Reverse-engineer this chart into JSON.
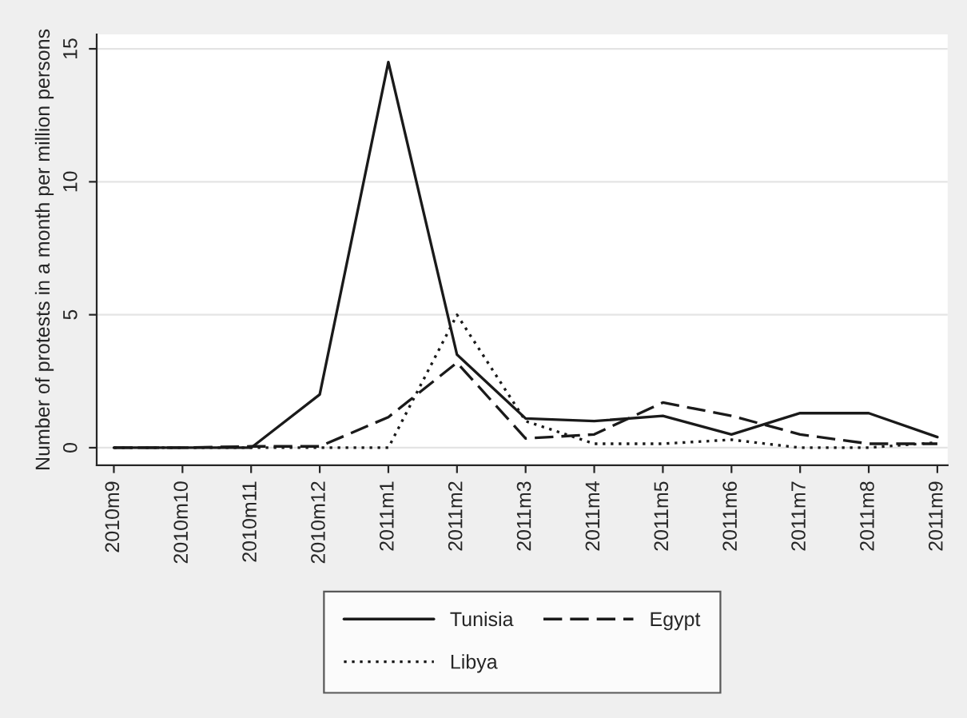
{
  "chart_data": {
    "type": "line",
    "ylabel": "Number of protests in a month per million persons",
    "categories": [
      "2010m9",
      "2010m10",
      "2010m11",
      "2010m12",
      "2011m1",
      "2011m2",
      "2011m3",
      "2011m4",
      "2011m5",
      "2011m6",
      "2011m7",
      "2011m8",
      "2011m9"
    ],
    "series": [
      {
        "name": "Tunisia",
        "color": "#1a1a1a",
        "line_style": "solid",
        "values": [
          0,
          0,
          0,
          2.0,
          14.5,
          3.5,
          1.1,
          1.0,
          1.2,
          0.5,
          1.3,
          1.3,
          0.4
        ]
      },
      {
        "name": "Egypt",
        "color": "#1a1a1a",
        "line_style": "dashed",
        "values": [
          0,
          0,
          0.05,
          0.05,
          1.15,
          3.2,
          0.35,
          0.5,
          1.7,
          1.2,
          0.5,
          0.15,
          0.15
        ]
      },
      {
        "name": "Libya",
        "color": "#1a1a1a",
        "line_style": "dotted",
        "values": [
          0,
          0,
          0,
          0,
          0,
          5.0,
          1.0,
          0.15,
          0.15,
          0.3,
          0,
          0,
          0.2
        ]
      }
    ],
    "ylim": [
      -0.66,
      15.54
    ],
    "yticks": [
      0,
      5,
      10,
      15
    ],
    "grid": "y",
    "legend": "bottom",
    "marker": "none"
  }
}
